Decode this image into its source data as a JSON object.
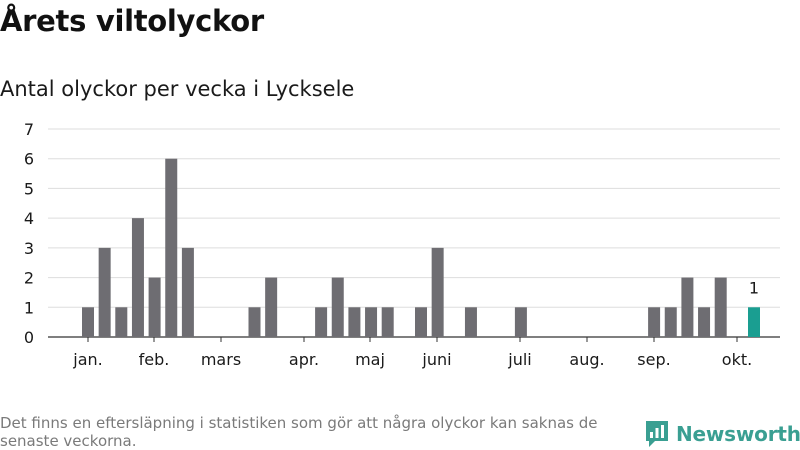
{
  "header": {
    "title": "Årets viltolyckor",
    "subtitle": "Antal olyckor per vecka i Lycksele"
  },
  "footer": {
    "note": "Det finns en eftersläpning i statistiken som gör att några olyckor kan saknas de senaste veckorna.",
    "brand": "Newsworthy",
    "brand_icon": "newsworthy-logo-icon"
  },
  "colors": {
    "bar": "#6e6d72",
    "highlight": "#1a9e91",
    "grid": "#dddddd",
    "brand": "#3a9f92"
  },
  "chart_data": {
    "type": "bar",
    "xlabel": "",
    "ylabel": "",
    "ylim": [
      0,
      7
    ],
    "y_ticks": [
      0,
      1,
      2,
      3,
      4,
      5,
      6,
      7
    ],
    "grid": true,
    "x_tick_labels": [
      "jan.",
      "feb.",
      "mars",
      "apr.",
      "maj",
      "juni",
      "juli",
      "aug.",
      "sep.",
      "okt."
    ],
    "categories": [
      1,
      2,
      3,
      4,
      5,
      6,
      7,
      8,
      9,
      10,
      11,
      12,
      13,
      14,
      15,
      16,
      17,
      18,
      19,
      20,
      21,
      22,
      23,
      24,
      25,
      26,
      27,
      28,
      29,
      30,
      31,
      32,
      33,
      34,
      35,
      36,
      37,
      38,
      39,
      40,
      41
    ],
    "values": [
      1,
      3,
      1,
      4,
      2,
      6,
      3,
      0,
      0,
      0,
      1,
      2,
      0,
      0,
      1,
      2,
      1,
      1,
      1,
      0,
      1,
      3,
      0,
      1,
      0,
      0,
      1,
      0,
      0,
      0,
      0,
      0,
      0,
      0,
      1,
      1,
      2,
      1,
      2,
      0,
      1
    ],
    "highlight": {
      "category": 41,
      "value": 1,
      "label": "1"
    }
  }
}
